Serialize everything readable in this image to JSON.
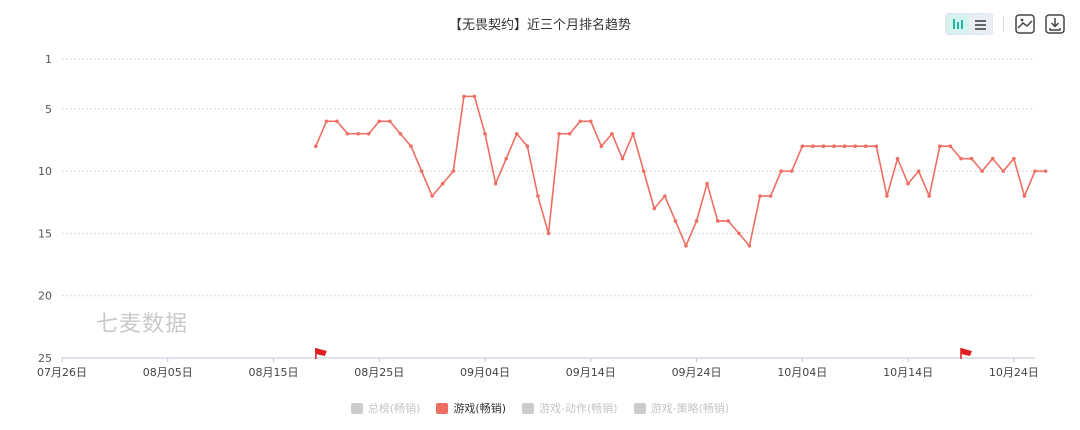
{
  "chart_data": {
    "type": "line",
    "title": "【无畏契约】近三个月排名趋势",
    "y_axis": {
      "inverted": true,
      "range": [
        1,
        25
      ],
      "ticks": [
        "1",
        "5",
        "10",
        "15",
        "20",
        "25"
      ]
    },
    "x_axis": {
      "range": [
        "07月26日",
        "10月26日"
      ],
      "ticks": [
        "07月26日",
        "08月05日",
        "08月15日",
        "08月25日",
        "09月04日",
        "09月14日",
        "09月24日",
        "10月04日",
        "10月14日",
        "10月24日"
      ]
    },
    "grid": true,
    "legend_position": "bottom-center",
    "series": [
      {
        "name": "游戏(畅销)",
        "color": "#ef6e64",
        "start_date": "08月19日",
        "ranks": [
          8,
          6,
          6,
          7,
          7,
          7,
          6,
          6,
          7,
          8,
          10,
          12,
          11,
          10,
          4,
          4,
          7,
          11,
          9,
          7,
          8,
          12,
          15,
          7,
          7,
          6,
          6,
          8,
          7,
          9,
          7,
          10,
          13,
          12,
          14,
          16,
          14,
          11,
          14,
          14,
          15,
          16,
          12,
          12,
          10,
          10,
          8,
          8,
          8,
          8,
          8,
          8,
          8,
          8,
          12,
          9,
          11,
          10,
          12,
          8,
          8,
          9,
          9,
          10,
          9,
          10,
          9,
          12,
          10,
          10
        ]
      }
    ],
    "flags": [
      {
        "date": "08月19日",
        "color": "#e02020"
      },
      {
        "date": "10月19日",
        "color": "#e02020"
      }
    ]
  },
  "legend": [
    {
      "label": "总榜(畅销)",
      "active": false
    },
    {
      "label": "游戏(畅销)",
      "active": true
    },
    {
      "label": "游戏-动作(畅销)",
      "active": false
    },
    {
      "label": "游戏-策略(畅销)",
      "active": false
    }
  ],
  "watermark": "七麦数据",
  "toolbar": {
    "icons": [
      "bar-view-icon",
      "list-view-icon",
      "save-image-icon",
      "download-icon"
    ],
    "accent": "#21b8a0"
  }
}
